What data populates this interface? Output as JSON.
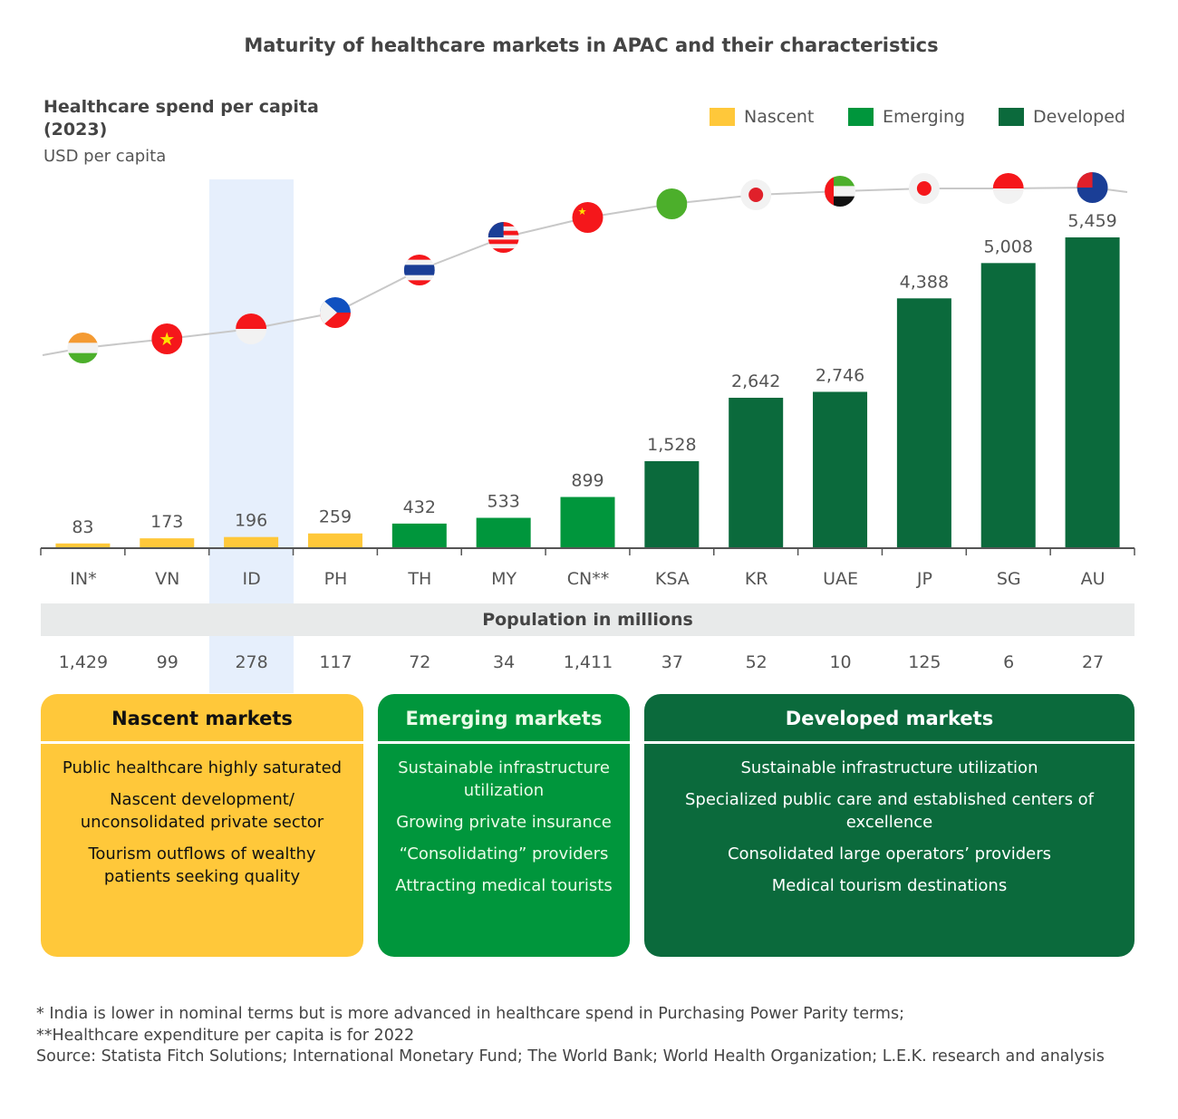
{
  "title": "Maturity of healthcare markets in APAC and their characteristics",
  "colors": {
    "Nascent": "#FFC83A",
    "Emerging": "#00963C",
    "Developed": "#0B6A3C",
    "highlight": "#e6effc",
    "curve": "#c8c8c8"
  },
  "chart_data": {
    "type": "bar",
    "title": "Maturity of healthcare markets in APAC and their characteristics",
    "ylabel": "Healthcare spend per capita (2023)",
    "yunit": "USD per capita",
    "categories": [
      "IN*",
      "VN",
      "ID",
      "PH",
      "TH",
      "MY",
      "CN**",
      "KSA",
      "KR",
      "UAE",
      "JP",
      "SG",
      "AU"
    ],
    "values": [
      83,
      173,
      196,
      259,
      432,
      533,
      899,
      1528,
      2642,
      2746,
      4388,
      5008,
      5459
    ],
    "value_labels": [
      "83",
      "173",
      "196",
      "259",
      "432",
      "533",
      "899",
      "1,528",
      "2,642",
      "2,746",
      "4,388",
      "5,008",
      "5,459"
    ],
    "groups": [
      "Nascent",
      "Nascent",
      "Nascent",
      "Nascent",
      "Emerging",
      "Emerging",
      "Emerging",
      "Developed",
      "Developed",
      "Developed",
      "Developed",
      "Developed",
      "Developed"
    ],
    "legend": [
      "Nascent",
      "Emerging",
      "Developed"
    ],
    "legend_position": "top-right",
    "highlighted_category": "ID",
    "grid": false,
    "ylim": [
      0,
      5459
    ],
    "population_title": "Population in millions",
    "population": [
      "1,429",
      "99",
      "278",
      "117",
      "72",
      "34",
      "1,411",
      "37",
      "52",
      "10",
      "125",
      "6",
      "27"
    ],
    "flags": [
      {
        "icon": "india-flag-icon",
        "stripes": [
          "#F49A32",
          "#f2f2f2",
          "#4CAF2B"
        ]
      },
      {
        "icon": "vietnam-flag-icon",
        "stripes": [
          "#F5171B"
        ],
        "star": "#FFE000"
      },
      {
        "icon": "indonesia-flag-icon",
        "stripes": [
          "#F5171B",
          "#f2f2f2"
        ]
      },
      {
        "icon": "philippines-flag-icon",
        "stripes": [
          "#1050C0",
          "#F5171B"
        ],
        "triangle": "#f2f2f2"
      },
      {
        "icon": "thailand-flag-icon",
        "stripes": [
          "#F5171B",
          "#f2f2f2",
          "#1A3E96",
          "#1A3E96",
          "#f2f2f2",
          "#F5171B"
        ]
      },
      {
        "icon": "malaysia-flag-icon",
        "stripes": [
          "#F5171B",
          "#f2f2f2",
          "#F5171B",
          "#f2f2f2",
          "#F5171B",
          "#f2f2f2",
          "#F5171B"
        ],
        "canton": "#1A3E96"
      },
      {
        "icon": "china-flag-icon",
        "stripes": [
          "#F5171B"
        ],
        "star": "#FFE000"
      },
      {
        "icon": "saudi-arabia-flag-icon",
        "stripes": [
          "#4CAF2B"
        ]
      },
      {
        "icon": "south-korea-flag-icon",
        "stripes": [
          "#f2f2f2"
        ],
        "dot": "#E0202A"
      },
      {
        "icon": "uae-flag-icon",
        "stripes": [
          "#4CAF2B",
          "#f2f2f2",
          "#111111"
        ],
        "hoist": "#F5171B"
      },
      {
        "icon": "japan-flag-icon",
        "stripes": [
          "#f2f2f2"
        ],
        "dot": "#F5171B"
      },
      {
        "icon": "singapore-flag-icon",
        "stripes": [
          "#F5171B",
          "#f2f2f2"
        ]
      },
      {
        "icon": "australia-flag-icon",
        "stripes": [
          "#1A3E96"
        ],
        "canton": "#E0202A"
      }
    ]
  },
  "boxes": [
    {
      "title": "Nascent markets",
      "items": [
        "Public healthcare highly saturated",
        "Nascent development/ unconsolidated private sector",
        "Tourism outflows of wealthy patients seeking quality"
      ]
    },
    {
      "title": "Emerging markets",
      "items": [
        "Sustainable infrastructure utilization",
        "Growing private insurance",
        "“Consolidating” providers",
        "Attracting medical tourists"
      ]
    },
    {
      "title": "Developed markets",
      "items": [
        "Sustainable infrastructure utilization",
        "Specialized public care and established centers of excellence",
        "Consolidated large operators’ providers",
        "Medical tourism destinations"
      ]
    }
  ],
  "notes": [
    "* India is lower in nominal terms but is more advanced in healthcare spend in Purchasing Power Parity terms;",
    "**Healthcare expenditure per capita is for 2022",
    "Source:  Statista Fitch Solutions; International Monetary Fund; The World Bank; World Health Organization; L.E.K. research and analysis"
  ]
}
